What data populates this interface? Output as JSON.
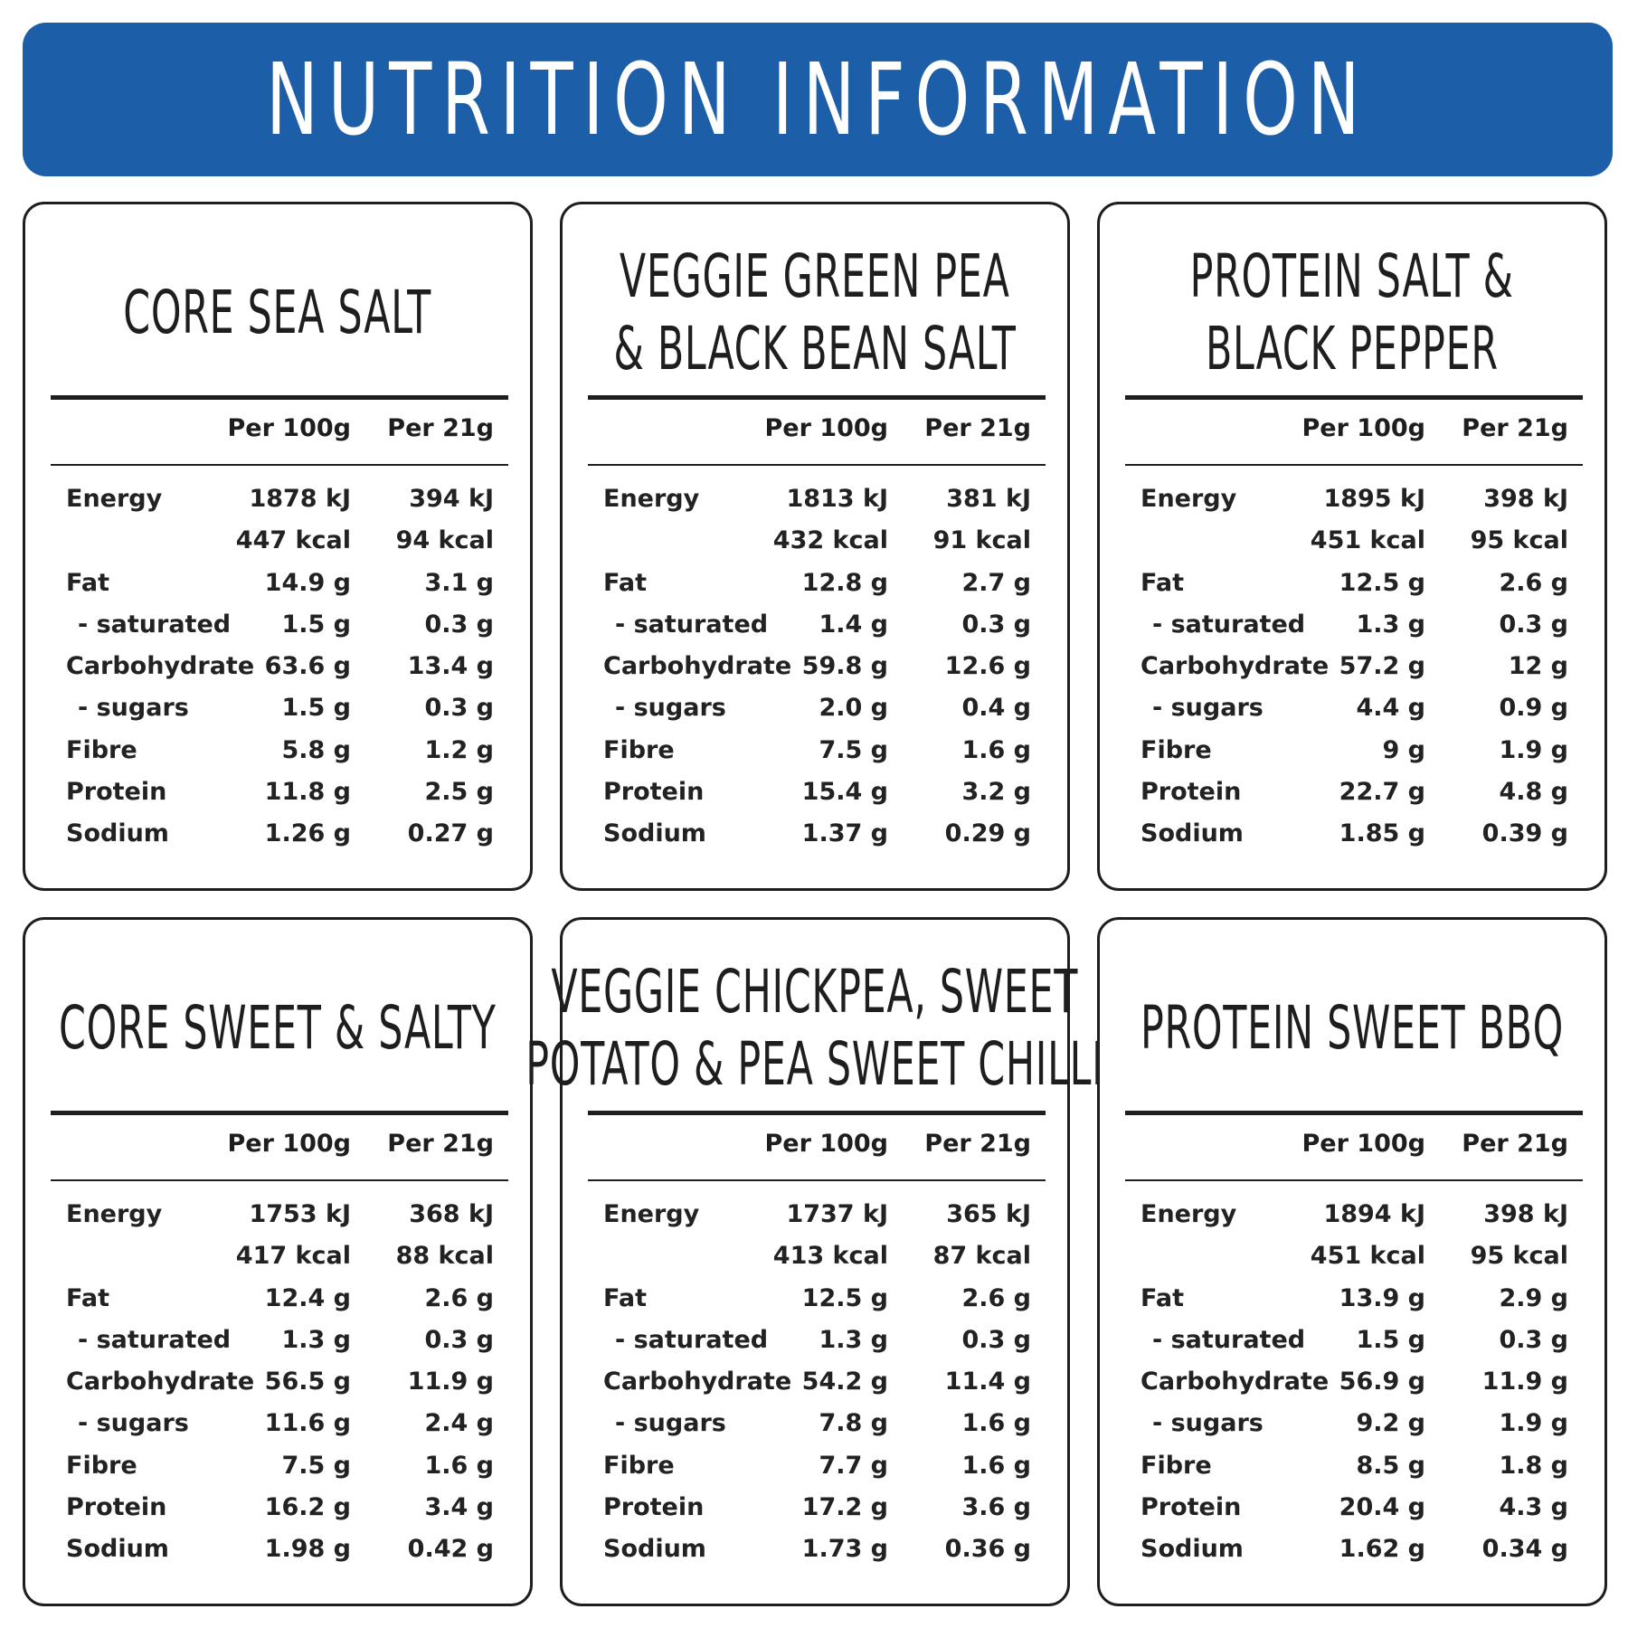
{
  "header": {
    "title": "NUTRITION INFORMATION"
  },
  "colors": {
    "banner": "#1d5ea8",
    "text": "#1e1e1e",
    "background": "#ffffff"
  },
  "column_headers": {
    "per100": "Per 100g",
    "per21": "Per 21g"
  },
  "products": [
    {
      "title_lines": [
        "CORE SEA SALT",
        ""
      ],
      "rows": [
        {
          "label": "Energy",
          "per100": "1878 kJ",
          "per21": "394 kJ"
        },
        {
          "label": "",
          "per100": "447 kcal",
          "per21": "94 kcal"
        },
        {
          "label": "Fat",
          "per100": "14.9 g",
          "per21": "3.1 g"
        },
        {
          "label": "- saturated",
          "per100": "1.5 g",
          "per21": "0.3 g"
        },
        {
          "label": "Carbohydrate",
          "per100": "63.6 g",
          "per21": "13.4 g"
        },
        {
          "label": "- sugars",
          "per100": "1.5 g",
          "per21": "0.3 g"
        },
        {
          "label": "Fibre",
          "per100": "5.8 g",
          "per21": "1.2 g"
        },
        {
          "label": "Protein",
          "per100": "11.8 g",
          "per21": "2.5 g"
        },
        {
          "label": "Sodium",
          "per100": "1.26 g",
          "per21": "0.27 g"
        }
      ]
    },
    {
      "title_lines": [
        "VEGGIE GREEN PEA",
        "& BLACK BEAN SALT"
      ],
      "rows": [
        {
          "label": "Energy",
          "per100": "1813 kJ",
          "per21": "381 kJ"
        },
        {
          "label": "",
          "per100": "432 kcal",
          "per21": "91 kcal"
        },
        {
          "label": "Fat",
          "per100": "12.8 g",
          "per21": "2.7 g"
        },
        {
          "label": "- saturated",
          "per100": "1.4 g",
          "per21": "0.3 g"
        },
        {
          "label": "Carbohydrate",
          "per100": "59.8 g",
          "per21": "12.6 g"
        },
        {
          "label": "- sugars",
          "per100": "2.0 g",
          "per21": "0.4 g"
        },
        {
          "label": "Fibre",
          "per100": "7.5 g",
          "per21": "1.6 g"
        },
        {
          "label": "Protein",
          "per100": "15.4 g",
          "per21": "3.2 g"
        },
        {
          "label": "Sodium",
          "per100": "1.37 g",
          "per21": "0.29 g"
        }
      ]
    },
    {
      "title_lines": [
        "PROTEIN SALT &",
        "BLACK PEPPER"
      ],
      "rows": [
        {
          "label": "Energy",
          "per100": "1895 kJ",
          "per21": "398 kJ"
        },
        {
          "label": "",
          "per100": "451 kcal",
          "per21": "95 kcal"
        },
        {
          "label": "Fat",
          "per100": "12.5 g",
          "per21": "2.6 g"
        },
        {
          "label": "- saturated",
          "per100": "1.3 g",
          "per21": "0.3 g"
        },
        {
          "label": "Carbohydrate",
          "per100": "57.2 g",
          "per21": "12 g"
        },
        {
          "label": "- sugars",
          "per100": "4.4 g",
          "per21": "0.9 g"
        },
        {
          "label": "Fibre",
          "per100": "9 g",
          "per21": "1.9 g"
        },
        {
          "label": "Protein",
          "per100": "22.7 g",
          "per21": "4.8 g"
        },
        {
          "label": "Sodium",
          "per100": "1.85 g",
          "per21": "0.39 g"
        }
      ]
    },
    {
      "title_lines": [
        "CORE SWEET & SALTY",
        ""
      ],
      "rows": [
        {
          "label": "Energy",
          "per100": "1753 kJ",
          "per21": "368 kJ"
        },
        {
          "label": "",
          "per100": "417 kcal",
          "per21": "88 kcal"
        },
        {
          "label": "Fat",
          "per100": "12.4 g",
          "per21": "2.6 g"
        },
        {
          "label": "- saturated",
          "per100": "1.3 g",
          "per21": "0.3 g"
        },
        {
          "label": "Carbohydrate",
          "per100": "56.5 g",
          "per21": "11.9 g"
        },
        {
          "label": "- sugars",
          "per100": "11.6 g",
          "per21": "2.4 g"
        },
        {
          "label": "Fibre",
          "per100": "7.5 g",
          "per21": "1.6 g"
        },
        {
          "label": "Protein",
          "per100": "16.2 g",
          "per21": "3.4 g"
        },
        {
          "label": "Sodium",
          "per100": "1.98 g",
          "per21": "0.42 g"
        }
      ]
    },
    {
      "title_lines": [
        "VEGGIE CHICKPEA, SWEET",
        "POTATO & PEA SWEET CHILLI"
      ],
      "rows": [
        {
          "label": "Energy",
          "per100": "1737 kJ",
          "per21": "365 kJ"
        },
        {
          "label": "",
          "per100": "413 kcal",
          "per21": "87 kcal"
        },
        {
          "label": "Fat",
          "per100": "12.5 g",
          "per21": "2.6 g"
        },
        {
          "label": "- saturated",
          "per100": "1.3 g",
          "per21": "0.3 g"
        },
        {
          "label": "Carbohydrate",
          "per100": "54.2 g",
          "per21": "11.4 g"
        },
        {
          "label": "- sugars",
          "per100": "7.8 g",
          "per21": "1.6 g"
        },
        {
          "label": "Fibre",
          "per100": "7.7 g",
          "per21": "1.6 g"
        },
        {
          "label": "Protein",
          "per100": "17.2 g",
          "per21": "3.6 g"
        },
        {
          "label": "Sodium",
          "per100": "1.73 g",
          "per21": "0.36 g"
        }
      ]
    },
    {
      "title_lines": [
        "PROTEIN SWEET BBQ",
        ""
      ],
      "rows": [
        {
          "label": "Energy",
          "per100": "1894 kJ",
          "per21": "398 kJ"
        },
        {
          "label": "",
          "per100": "451 kcal",
          "per21": "95 kcal"
        },
        {
          "label": "Fat",
          "per100": "13.9 g",
          "per21": "2.9 g"
        },
        {
          "label": "- saturated",
          "per100": "1.5 g",
          "per21": "0.3 g"
        },
        {
          "label": "Carbohydrate",
          "per100": "56.9 g",
          "per21": "11.9 g"
        },
        {
          "label": "- sugars",
          "per100": "9.2 g",
          "per21": "1.9 g"
        },
        {
          "label": "Fibre",
          "per100": "8.5 g",
          "per21": "1.8 g"
        },
        {
          "label": "Protein",
          "per100": "20.4 g",
          "per21": "4.3 g"
        },
        {
          "label": "Sodium",
          "per100": "1.62 g",
          "per21": "0.34 g"
        }
      ]
    }
  ]
}
